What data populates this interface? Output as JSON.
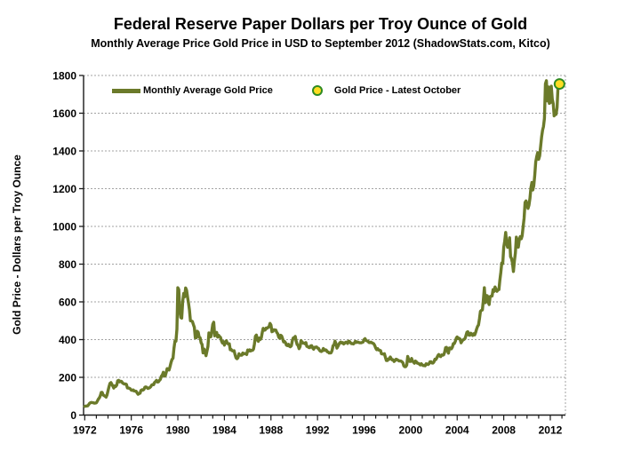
{
  "chart_data": {
    "type": "line",
    "title": "Federal Reserve Paper Dollars per Troy Ounce of Gold",
    "subtitle": "Monthly Average Price Gold Price in USD to September 2012 (ShadowStats.com, Kitco)",
    "xlabel": "",
    "ylabel": "Gold Price - Dollars per Troy Ounce",
    "xlim": [
      1971.9,
      2013.3
    ],
    "ylim": [
      0,
      1800
    ],
    "x_ticks": [
      1972,
      1976,
      1980,
      1984,
      1988,
      1992,
      1996,
      2000,
      2004,
      2008,
      2012
    ],
    "x_minor_tick_every_years": 1,
    "x_minor_tick_range": [
      1972,
      2013
    ],
    "y_ticks": [
      0,
      200,
      400,
      600,
      800,
      1000,
      1200,
      1400,
      1600,
      1800
    ],
    "grid": "horizontal-dashed",
    "legend_position": "top-left-inside",
    "colors": {
      "line": "#6B7A2A",
      "marker_fill": "#FFDD22",
      "marker_stroke": "#2E8B22",
      "grid": "#A3A3A3",
      "axis": "#1A1A1A",
      "text": "#000000",
      "background": "#FFFFFF"
    },
    "series": [
      {
        "name": "Monthly Average Gold Price",
        "type": "line",
        "frequency": "monthly",
        "start_year": 1972,
        "start_month": 1,
        "end_label": "September 2012",
        "values": [
          46,
          48,
          48,
          49,
          55,
          62,
          66,
          67,
          66,
          65,
          63,
          64,
          65,
          74,
          84,
          91,
          102,
          120,
          120,
          107,
          103,
          100,
          95,
          107,
          129,
          150,
          168,
          172,
          163,
          154,
          143,
          155,
          152,
          159,
          182,
          184,
          176,
          180,
          178,
          170,
          167,
          164,
          165,
          163,
          144,
          143,
          142,
          139,
          132,
          131,
          133,
          128,
          127,
          126,
          118,
          110,
          114,
          116,
          131,
          134,
          132,
          136,
          148,
          149,
          147,
          141,
          143,
          145,
          150,
          159,
          162,
          161,
          173,
          178,
          184,
          175,
          176,
          184,
          189,
          206,
          212,
          227,
          206,
          208,
          227,
          246,
          242,
          239,
          258,
          279,
          295,
          301,
          355,
          392,
          392,
          455,
          675,
          665,
          554,
          517,
          514,
          601,
          644,
          627,
          674,
          661,
          624,
          595,
          557,
          500,
          499,
          496,
          480,
          465,
          409,
          410,
          444,
          438,
          413,
          410,
          384,
          374,
          330,
          350,
          334,
          315,
          339,
          364,
          436,
          422,
          415,
          444,
          481,
          492,
          420,
          433,
          438,
          413,
          423,
          416,
          412,
          394,
          382,
          389,
          371,
          386,
          394,
          381,
          377,
          378,
          347,
          348,
          341,
          340,
          341,
          320,
          303,
          299,
          304,
          325,
          317,
          317,
          317,
          329,
          324,
          326,
          325,
          321,
          345,
          339,
          346,
          340,
          343,
          343,
          349,
          377,
          418,
          424,
          399,
          391,
          408,
          401,
          409,
          438,
          460,
          450,
          451,
          461,
          460,
          465,
          468,
          486,
          477,
          442,
          444,
          452,
          451,
          451,
          438,
          431,
          413,
          407,
          423,
          419,
          404,
          388,
          390,
          384,
          371,
          368,
          375,
          365,
          362,
          367,
          394,
          409,
          410,
          417,
          393,
          374,
          369,
          352,
          363,
          395,
          388,
          381,
          382,
          378,
          384,
          364,
          363,
          358,
          357,
          367,
          368,
          356,
          349,
          359,
          360,
          361,
          355,
          354,
          344,
          339,
          337,
          341,
          353,
          343,
          346,
          344,
          335,
          335,
          329,
          329,
          330,
          342,
          367,
          372,
          392,
          379,
          355,
          364,
          374,
          383,
          387,
          382,
          384,
          377,
          381,
          386,
          386,
          380,
          392,
          390,
          384,
          379,
          379,
          377,
          382,
          391,
          385,
          388,
          386,
          384,
          383,
          383,
          385,
          387,
          400,
          405,
          396,
          393,
          392,
          385,
          384,
          387,
          383,
          381,
          378,
          369,
          355,
          347,
          352,
          345,
          344,
          341,
          324,
          324,
          323,
          325,
          306,
          289,
          289,
          298,
          296,
          308,
          299,
          292,
          293,
          284,
          289,
          296,
          294,
          291,
          287,
          287,
          286,
          283,
          277,
          261,
          256,
          257,
          265,
          311,
          293,
          284,
          284,
          300,
          286,
          280,
          275,
          286,
          282,
          275,
          274,
          270,
          266,
          272,
          266,
          262,
          263,
          261,
          272,
          270,
          268,
          272,
          283,
          283,
          276,
          276,
          282,
          296,
          294,
          303,
          314,
          321,
          313,
          310,
          319,
          317,
          319,
          332,
          357,
          359,
          341,
          328,
          356,
          356,
          351,
          360,
          379,
          379,
          390,
          407,
          414,
          405,
          407,
          403,
          383,
          392,
          398,
          401,
          405,
          421,
          439,
          442,
          424,
          423,
          434,
          429,
          422,
          431,
          425,
          438,
          456,
          470,
          477,
          510,
          550,
          555,
          557,
          611,
          675,
          596,
          634,
          633,
          598,
          586,
          628,
          630,
          631,
          665,
          655,
          679,
          667,
          656,
          665,
          665,
          713,
          755,
          806,
          803,
          890,
          922,
          968,
          910,
          889,
          890,
          940,
          839,
          830,
          807,
          761,
          816,
          859,
          943,
          924,
          890,
          929,
          946,
          934,
          949,
          997,
          1043,
          1127,
          1135,
          1118,
          1095,
          1113,
          1149,
          1205,
          1233,
          1193,
          1216,
          1271,
          1342,
          1370,
          1391,
          1356,
          1373,
          1424,
          1474,
          1510,
          1529,
          1573,
          1756,
          1772,
          1665,
          1739,
          1652,
          1656,
          1743,
          1675,
          1650,
          1586,
          1599,
          1594,
          1630,
          1745
        ]
      },
      {
        "name": "Gold Price - Latest October",
        "type": "point",
        "x_year": 2012.79,
        "value": 1755
      }
    ]
  }
}
